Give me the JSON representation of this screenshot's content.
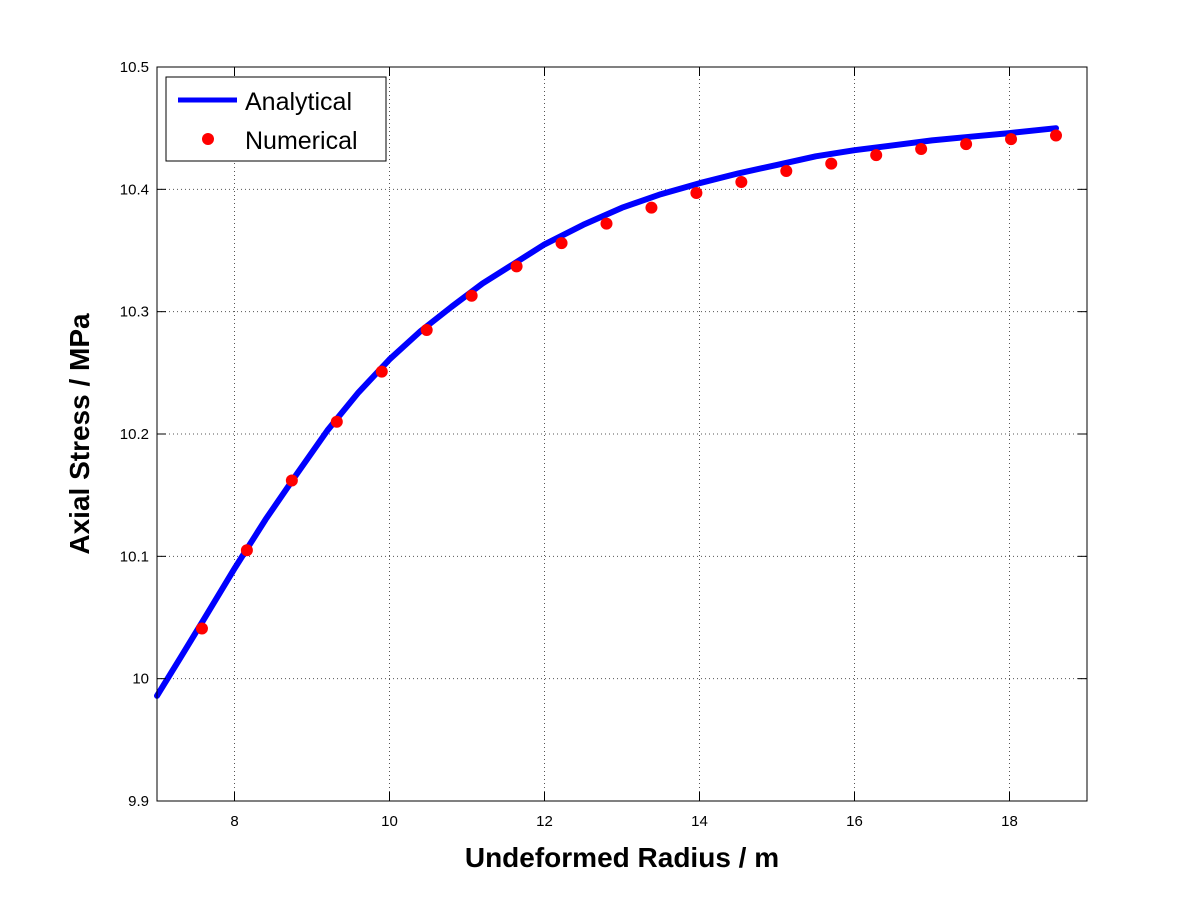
{
  "chart_data": {
    "type": "line",
    "title": "",
    "xlabel": "Undeformed Radius / m",
    "ylabel": "Axial Stress / MPa",
    "xlim": [
      7,
      19
    ],
    "ylim": [
      9.9,
      10.5
    ],
    "xticks": [
      8,
      10,
      12,
      14,
      16,
      18
    ],
    "yticks": [
      9.9,
      10,
      10.1,
      10.2,
      10.3,
      10.4,
      10.5
    ],
    "xtick_labels": [
      "8",
      "10",
      "12",
      "14",
      "16",
      "18"
    ],
    "ytick_labels": [
      "9.9",
      "10",
      "10.1",
      "10.2",
      "10.3",
      "10.4",
      "10.5"
    ],
    "grid": true,
    "legend_position": "top-left",
    "series": [
      {
        "name": "Analytical",
        "style": "line",
        "color": "#0000ff",
        "x": [
          7.0,
          7.3,
          7.6,
          8.0,
          8.4,
          8.8,
          9.2,
          9.6,
          10.0,
          10.4,
          10.8,
          11.2,
          11.6,
          12.0,
          12.5,
          13.0,
          13.5,
          14.0,
          14.5,
          15.0,
          15.5,
          16.0,
          16.5,
          17.0,
          17.5,
          18.0,
          18.6
        ],
        "y": [
          9.986,
          10.017,
          10.048,
          10.09,
          10.13,
          10.167,
          10.203,
          10.234,
          10.261,
          10.284,
          10.304,
          10.323,
          10.339,
          10.355,
          10.371,
          10.385,
          10.396,
          10.405,
          10.413,
          10.42,
          10.427,
          10.432,
          10.436,
          10.44,
          10.443,
          10.446,
          10.45
        ]
      },
      {
        "name": "Numerical",
        "style": "markers",
        "color": "#ff0000",
        "x": [
          7.58,
          8.16,
          8.74,
          9.32,
          9.9,
          10.48,
          11.06,
          11.64,
          12.22,
          12.8,
          13.38,
          13.96,
          14.54,
          15.12,
          15.7,
          16.28,
          16.86,
          17.44,
          18.02,
          18.6
        ],
        "y": [
          10.041,
          10.105,
          10.162,
          10.21,
          10.251,
          10.285,
          10.313,
          10.337,
          10.356,
          10.372,
          10.385,
          10.397,
          10.406,
          10.415,
          10.421,
          10.428,
          10.433,
          10.437,
          10.441,
          10.444
        ]
      }
    ]
  }
}
